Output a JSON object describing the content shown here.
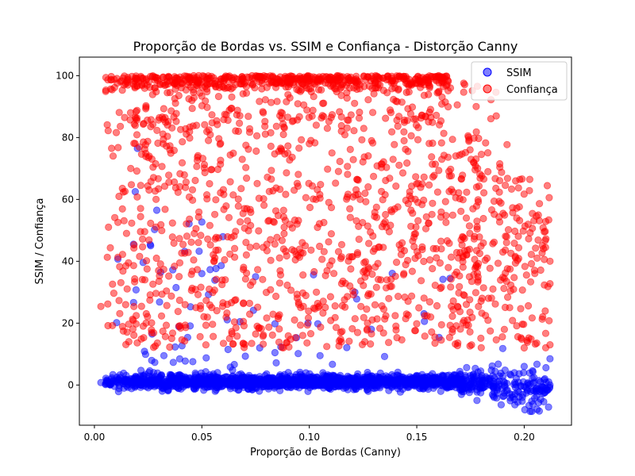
{
  "chart_data": {
    "type": "scatter",
    "title": "Proporção de Bordas vs. SSIM e Confiança - Distorção Canny",
    "xlabel": "Proporção de Bordas (Canny)",
    "ylabel": "SSIM / Confiança",
    "xlim": [
      -0.007,
      0.222
    ],
    "ylim": [
      -13,
      106
    ],
    "x_ticks": [
      0.0,
      0.05,
      0.1,
      0.15,
      0.2
    ],
    "x_tick_labels": [
      "0.00",
      "0.05",
      "0.10",
      "0.15",
      "0.20"
    ],
    "y_ticks": [
      0,
      20,
      40,
      60,
      80,
      100
    ],
    "y_tick_labels": [
      "0",
      "20",
      "40",
      "60",
      "80",
      "100"
    ],
    "grid": false,
    "legend_position": "top-right",
    "series": [
      {
        "name": "SSIM",
        "color": "#0000ff",
        "opacity": 0.5,
        "point_count": 1800,
        "x_range": [
          0.0,
          0.212
        ],
        "typical_y": [
          -3,
          5
        ],
        "sample_points": [
          [
            0.003,
            0.8
          ],
          [
            0.019,
            62.5
          ],
          [
            0.02,
            76.5
          ],
          [
            0.029,
            56.5
          ],
          [
            0.026,
            45.4
          ],
          [
            0.042,
            43.2
          ],
          [
            0.038,
            31.5
          ],
          [
            0.05,
            36.0
          ],
          [
            0.059,
            38.6
          ],
          [
            0.075,
            35.0
          ],
          [
            0.084,
            19.8
          ],
          [
            0.094,
            15.3
          ],
          [
            0.105,
            9.5
          ],
          [
            0.135,
            9.2
          ],
          [
            0.178,
            -5.0
          ],
          [
            0.186,
            -4.0
          ],
          [
            0.19,
            11.8
          ],
          [
            0.2,
            6.0
          ],
          [
            0.203,
            -2.1
          ],
          [
            0.206,
            -7.9
          ],
          [
            0.207,
            -8.4
          ],
          [
            0.212,
            8.5
          ],
          [
            0.212,
            0.0
          ]
        ]
      },
      {
        "name": "Confiança",
        "color": "#ff0000",
        "opacity": 0.5,
        "point_count": 1800,
        "x_range": [
          0.0,
          0.212
        ],
        "typical_y": [
          12,
          100
        ],
        "sample_points": [
          [
            0.003,
            25.4
          ],
          [
            0.006,
            41.3
          ],
          [
            0.008,
            76.5
          ],
          [
            0.013,
            95.3
          ],
          [
            0.016,
            14.0
          ],
          [
            0.187,
            87.0
          ],
          [
            0.192,
            77.7
          ],
          [
            0.196,
            66.0
          ],
          [
            0.2,
            12.0
          ],
          [
            0.206,
            41.0
          ],
          [
            0.21,
            16.7
          ],
          [
            0.212,
            40.0
          ],
          [
            0.212,
            13.0
          ]
        ]
      }
    ]
  }
}
